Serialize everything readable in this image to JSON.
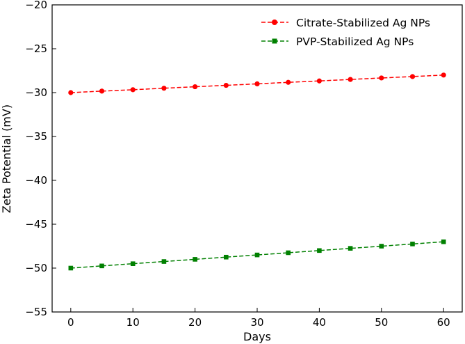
{
  "chart_data": {
    "type": "line",
    "title": "",
    "xlabel": "Days",
    "ylabel": "Zeta Potential (mV)",
    "xlim": [
      -3,
      63
    ],
    "ylim": [
      -55,
      -20
    ],
    "xticks": [
      0,
      10,
      20,
      30,
      40,
      50,
      60
    ],
    "yticks": [
      -55,
      -50,
      -45,
      -40,
      -35,
      -30,
      -25,
      -20
    ],
    "xtick_labels": [
      "0",
      "10",
      "20",
      "30",
      "40",
      "50",
      "60"
    ],
    "ytick_labels": [
      "−55",
      "−50",
      "−45",
      "−40",
      "−35",
      "−30",
      "−25",
      "−20"
    ],
    "grid": false,
    "legend_position": "top-right",
    "x": [
      0,
      5,
      10,
      15,
      20,
      25,
      30,
      35,
      40,
      45,
      50,
      55,
      60
    ],
    "series": [
      {
        "name": "Citrate-Stabilized Ag NPs",
        "color": "#ff0000",
        "marker": "circle",
        "line_style": "dashed",
        "values": [
          -30.0,
          -29.83,
          -29.67,
          -29.5,
          -29.33,
          -29.17,
          -29.0,
          -28.83,
          -28.67,
          -28.5,
          -28.33,
          -28.17,
          -28.0
        ]
      },
      {
        "name": "PVP-Stabilized Ag NPs",
        "color": "#008000",
        "marker": "square",
        "line_style": "dashed",
        "values": [
          -50.0,
          -49.75,
          -49.5,
          -49.25,
          -49.0,
          -48.75,
          -48.5,
          -48.25,
          -48.0,
          -47.75,
          -47.5,
          -47.25,
          -47.0
        ]
      }
    ]
  }
}
